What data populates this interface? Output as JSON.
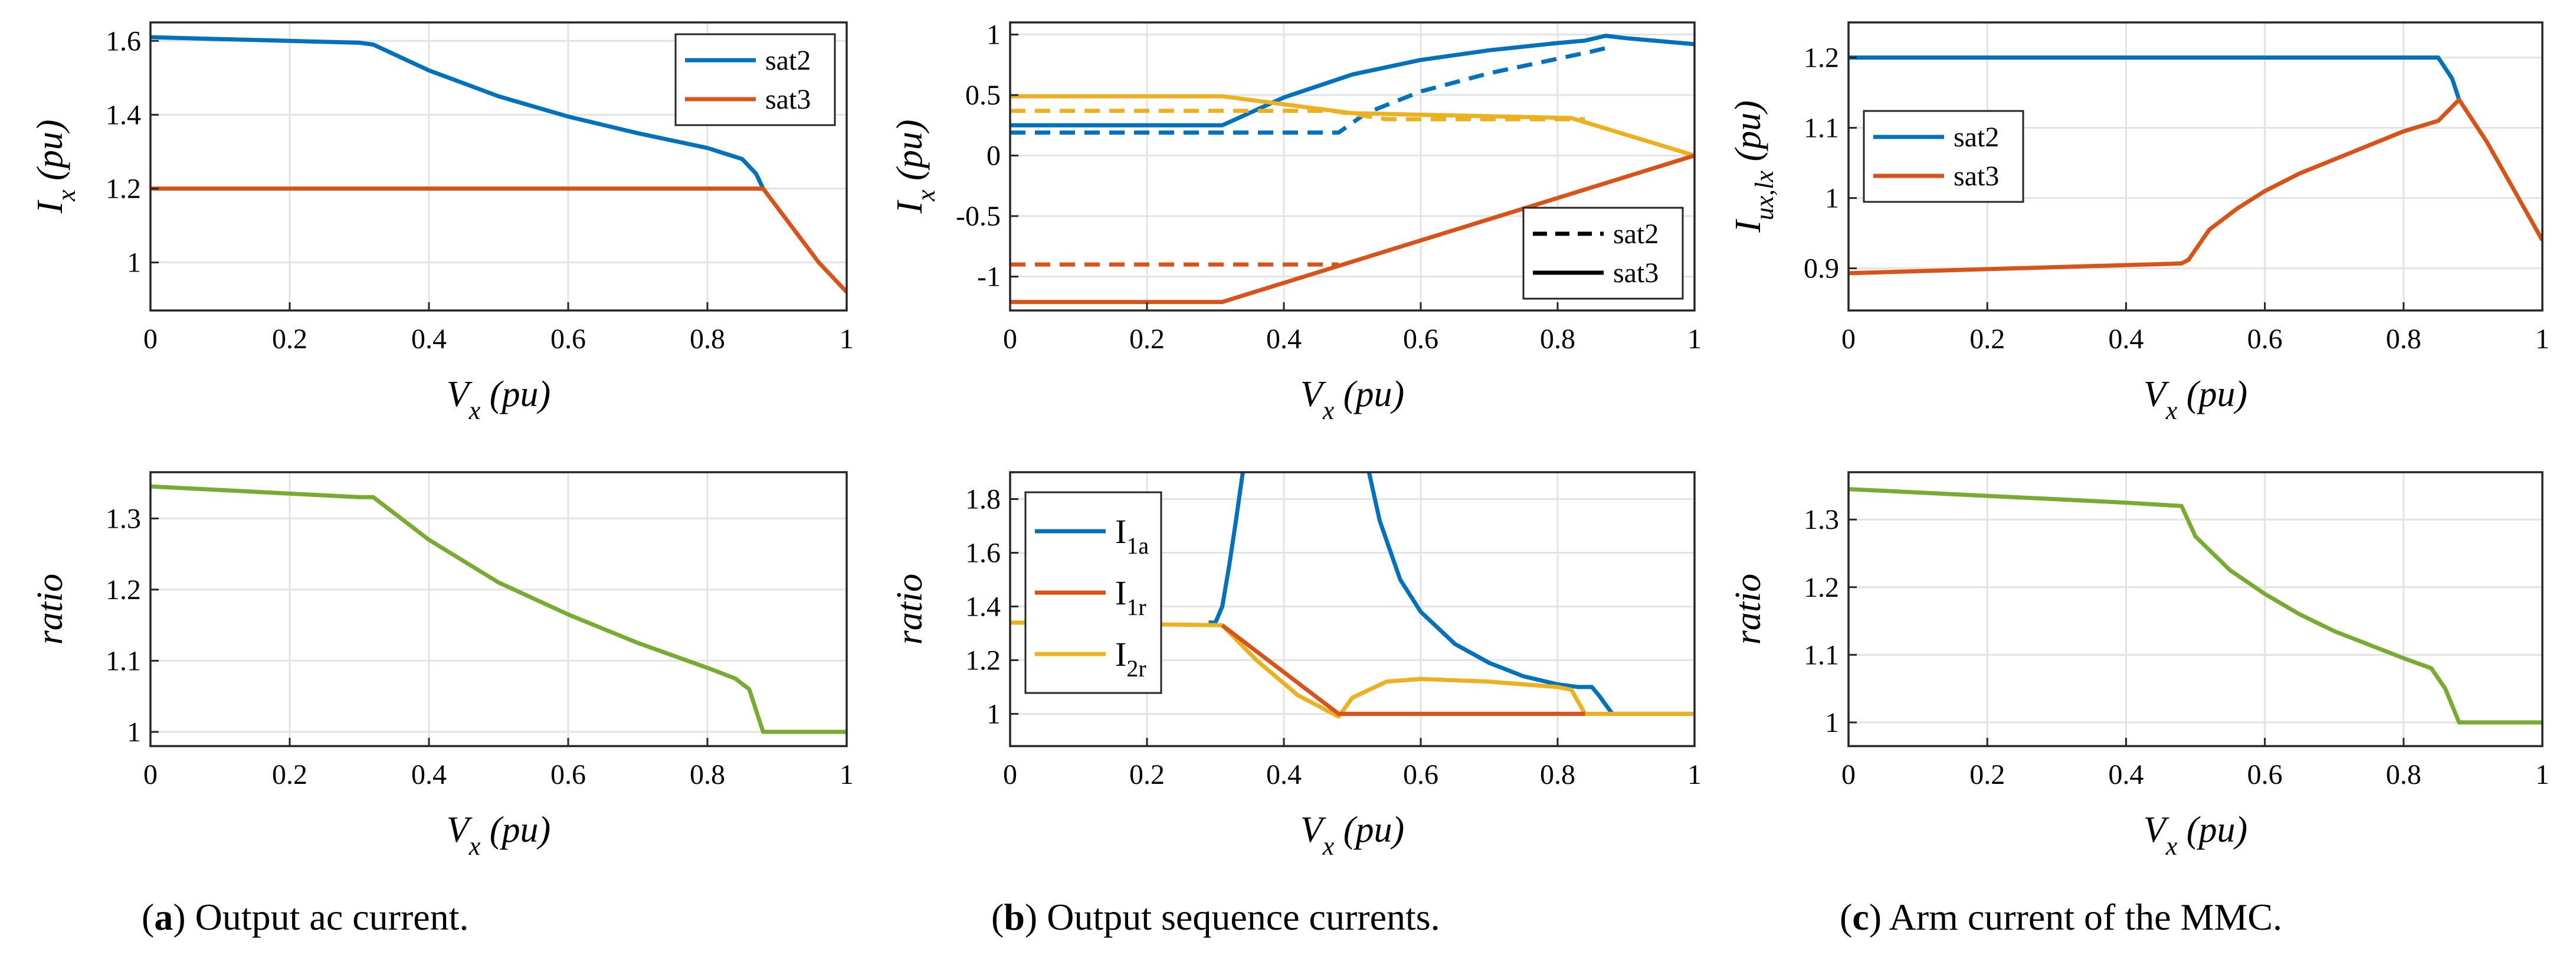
{
  "colors": {
    "blue": "#0072BD",
    "orange": "#D95319",
    "yellow": "#EDB120",
    "green": "#77AC30",
    "black": "#000000"
  },
  "chart_data": [
    {
      "id": "a-top",
      "type": "line",
      "title": "",
      "xlabel": "V",
      "xlabel_sub": "x",
      "xlabel_unit": " (pu)",
      "ylabel": "I",
      "ylabel_sub": "x",
      "ylabel_unit": " (pu)",
      "xlim": [
        0,
        1
      ],
      "ylim": [
        0.87,
        1.65
      ],
      "xticks": [
        0,
        0.2,
        0.4,
        0.6,
        0.8,
        1
      ],
      "xticklabels": [
        "0",
        "0.2",
        "0.4",
        "0.6",
        "0.8",
        "1"
      ],
      "yticks": [
        1,
        1.2,
        1.4,
        1.6
      ],
      "yticklabels": [
        "1",
        "1.2",
        "1.4",
        "1.6"
      ],
      "legend": {
        "placement": "top-right",
        "entries": [
          {
            "label": "sat2",
            "color": "#0072BD",
            "dash": false
          },
          {
            "label": "sat3",
            "color": "#D95319",
            "dash": false
          }
        ]
      },
      "series": [
        {
          "name": "sat2",
          "color": "#0072BD",
          "dash": false,
          "x": [
            0,
            0.1,
            0.2,
            0.3,
            0.32,
            0.4,
            0.5,
            0.6,
            0.7,
            0.8,
            0.85,
            0.87,
            0.88
          ],
          "y": [
            1.61,
            1.605,
            1.6,
            1.595,
            1.59,
            1.52,
            1.45,
            1.395,
            1.35,
            1.31,
            1.28,
            1.24,
            1.2
          ]
        },
        {
          "name": "sat3",
          "color": "#D95319",
          "dash": false,
          "x": [
            0,
            0.88,
            0.92,
            0.96,
            1.0
          ],
          "y": [
            1.2,
            1.2,
            1.1,
            1.0,
            0.92
          ]
        }
      ]
    },
    {
      "id": "a-bottom",
      "type": "line",
      "title": "",
      "xlabel": "V",
      "xlabel_sub": "x",
      "xlabel_unit": " (pu)",
      "ylabel": "ratio",
      "ylabel_sub": "",
      "ylabel_unit": "",
      "xlim": [
        0,
        1
      ],
      "ylim": [
        0.98,
        1.365
      ],
      "xticks": [
        0,
        0.2,
        0.4,
        0.6,
        0.8,
        1
      ],
      "xticklabels": [
        "0",
        "0.2",
        "0.4",
        "0.6",
        "0.8",
        "1"
      ],
      "yticks": [
        1,
        1.1,
        1.2,
        1.3
      ],
      "yticklabels": [
        "1",
        "1.1",
        "1.2",
        "1.3"
      ],
      "legend": null,
      "series": [
        {
          "name": "ratio",
          "color": "#77AC30",
          "dash": false,
          "x": [
            0,
            0.1,
            0.2,
            0.3,
            0.32,
            0.4,
            0.5,
            0.6,
            0.7,
            0.8,
            0.84,
            0.86,
            0.88,
            1.0
          ],
          "y": [
            1.345,
            1.34,
            1.335,
            1.33,
            1.33,
            1.27,
            1.21,
            1.165,
            1.125,
            1.09,
            1.075,
            1.06,
            1.0,
            1.0
          ]
        }
      ]
    },
    {
      "id": "b-top",
      "type": "line",
      "title": "",
      "xlabel": "V",
      "xlabel_sub": "x",
      "xlabel_unit": " (pu)",
      "ylabel": "I",
      "ylabel_sub": "x",
      "ylabel_unit": " (pu)",
      "xlim": [
        0,
        1
      ],
      "ylim": [
        -1.28,
        1.1
      ],
      "xticks": [
        0,
        0.2,
        0.4,
        0.6,
        0.8,
        1
      ],
      "xticklabels": [
        "0",
        "0.2",
        "0.4",
        "0.6",
        "0.8",
        "1"
      ],
      "yticks": [
        -1,
        -0.5,
        0,
        0.5,
        1
      ],
      "yticklabels": [
        "-1",
        "-0.5",
        "0",
        "0.5",
        "1"
      ],
      "legend": {
        "placement": "bottom-right",
        "entries": [
          {
            "label": "sat2",
            "color": "#000000",
            "dash": true
          },
          {
            "label": "sat3",
            "color": "#000000",
            "dash": false
          }
        ]
      },
      "series": [
        {
          "name": "blue sat3",
          "color": "#0072BD",
          "dash": false,
          "x": [
            0,
            0.31,
            0.4,
            0.5,
            0.6,
            0.7,
            0.8,
            0.84,
            0.87,
            0.9,
            1.0
          ],
          "y": [
            0.25,
            0.25,
            0.48,
            0.67,
            0.79,
            0.87,
            0.93,
            0.95,
            0.99,
            0.97,
            0.92
          ]
        },
        {
          "name": "blue sat2",
          "color": "#0072BD",
          "dash": true,
          "x": [
            0,
            0.48,
            0.52,
            0.6,
            0.7,
            0.8,
            0.85,
            0.88
          ],
          "y": [
            0.19,
            0.19,
            0.35,
            0.53,
            0.68,
            0.8,
            0.86,
            0.9
          ]
        },
        {
          "name": "yellow sat3",
          "color": "#EDB120",
          "dash": false,
          "x": [
            0,
            0.31,
            0.5,
            0.82,
            1.0
          ],
          "y": [
            0.49,
            0.49,
            0.35,
            0.31,
            0.0
          ]
        },
        {
          "name": "yellow sat2",
          "color": "#EDB120",
          "dash": true,
          "x": [
            0,
            0.47,
            0.55,
            0.84
          ],
          "y": [
            0.37,
            0.37,
            0.3,
            0.3
          ]
        },
        {
          "name": "orange sat2 dashed",
          "color": "#D95319",
          "dash": true,
          "x": [
            0,
            0.47
          ],
          "y": [
            -0.9,
            -0.9
          ]
        },
        {
          "name": "orange sat3",
          "color": "#D95319",
          "dash": false,
          "x": [
            0,
            0.31,
            1.0
          ],
          "y": [
            -1.21,
            -1.21,
            0.0
          ]
        },
        {
          "name": "orange sat2 tail",
          "color": "#D95319",
          "dash": true,
          "x": [
            0.47,
            0.48
          ],
          "y": [
            -0.9,
            -0.9
          ]
        }
      ]
    },
    {
      "id": "b-bottom",
      "type": "line",
      "title": "",
      "xlabel": "V",
      "xlabel_sub": "x",
      "xlabel_unit": " (pu)",
      "ylabel": "ratio",
      "ylabel_sub": "",
      "ylabel_unit": "",
      "xlim": [
        0,
        1
      ],
      "ylim": [
        0.88,
        1.9
      ],
      "xticks": [
        0,
        0.2,
        0.4,
        0.6,
        0.8,
        1
      ],
      "xticklabels": [
        "0",
        "0.2",
        "0.4",
        "0.6",
        "0.8",
        "1"
      ],
      "yticks": [
        1,
        1.2,
        1.4,
        1.6,
        1.8
      ],
      "yticklabels": [
        "1",
        "1.2",
        "1.4",
        "1.6",
        "1.8"
      ],
      "legend": {
        "placement": "top-left",
        "entries": [
          {
            "label": "I",
            "sub": "1a",
            "color": "#0072BD",
            "dash": false
          },
          {
            "label": "I",
            "sub": "1r",
            "color": "#D95319",
            "dash": false
          },
          {
            "label": "I",
            "sub": "2r",
            "color": "#EDB120",
            "dash": false
          }
        ]
      },
      "series": [
        {
          "name": "I1a left",
          "color": "#0072BD",
          "dash": false,
          "x": [
            0.29,
            0.3,
            0.31,
            0.32,
            0.33,
            0.34,
            0.35
          ],
          "y": [
            1.34,
            1.34,
            1.4,
            1.55,
            1.72,
            1.9,
            1.95
          ]
        },
        {
          "name": "I1a right",
          "color": "#0072BD",
          "dash": false,
          "x": [
            0.52,
            0.54,
            0.57,
            0.6,
            0.65,
            0.7,
            0.75,
            0.8,
            0.83,
            0.85,
            0.86,
            0.88,
            1.0
          ],
          "y": [
            1.95,
            1.72,
            1.5,
            1.38,
            1.26,
            1.19,
            1.14,
            1.11,
            1.1,
            1.1,
            1.07,
            1.0,
            1.0
          ]
        },
        {
          "name": "I2r",
          "color": "#EDB120",
          "dash": false,
          "x": [
            0,
            0.31,
            0.36,
            0.42,
            0.48,
            0.5,
            0.55,
            0.6,
            0.7,
            0.8,
            0.82,
            0.84,
            1.0
          ],
          "y": [
            1.34,
            1.33,
            1.2,
            1.07,
            0.99,
            1.06,
            1.12,
            1.13,
            1.12,
            1.1,
            1.09,
            1.0,
            1.0
          ]
        },
        {
          "name": "I1r",
          "color": "#D95319",
          "dash": false,
          "x": [
            0.31,
            0.48,
            0.84
          ],
          "y": [
            1.33,
            1.0,
            1.0
          ]
        }
      ]
    },
    {
      "id": "c-top",
      "type": "line",
      "title": "",
      "xlabel": "V",
      "xlabel_sub": "x",
      "xlabel_unit": " (pu)",
      "ylabel": "I",
      "ylabel_sub": "ux,lx",
      "ylabel_unit": " (pu)",
      "xlim": [
        0,
        1
      ],
      "ylim": [
        0.84,
        1.25
      ],
      "xticks": [
        0,
        0.2,
        0.4,
        0.6,
        0.8,
        1
      ],
      "xticklabels": [
        "0",
        "0.2",
        "0.4",
        "0.6",
        "0.8",
        "1"
      ],
      "yticks": [
        0.9,
        1,
        1.1,
        1.2
      ],
      "yticklabels": [
        "0.9",
        "1",
        "1.1",
        "1.2"
      ],
      "legend": {
        "placement": "top-left",
        "entries": [
          {
            "label": "sat2",
            "color": "#0072BD",
            "dash": false
          },
          {
            "label": "sat3",
            "color": "#D95319",
            "dash": false
          }
        ]
      },
      "series": [
        {
          "name": "sat2",
          "color": "#0072BD",
          "dash": false,
          "x": [
            0,
            0.85,
            0.87,
            0.88
          ],
          "y": [
            1.2,
            1.2,
            1.17,
            1.14
          ]
        },
        {
          "name": "sat3",
          "color": "#D95319",
          "dash": false,
          "x": [
            0,
            0.48,
            0.49,
            0.52,
            0.56,
            0.6,
            0.65,
            0.7,
            0.75,
            0.8,
            0.85,
            0.88,
            0.92,
            0.96,
            1.0
          ],
          "y": [
            0.893,
            0.907,
            0.912,
            0.955,
            0.985,
            1.01,
            1.035,
            1.055,
            1.075,
            1.095,
            1.11,
            1.14,
            1.08,
            1.01,
            0.94
          ]
        }
      ]
    },
    {
      "id": "c-bottom",
      "type": "line",
      "title": "",
      "xlabel": "V",
      "xlabel_sub": "x",
      "xlabel_unit": " (pu)",
      "ylabel": "ratio",
      "ylabel_sub": "",
      "ylabel_unit": "",
      "xlim": [
        0,
        1
      ],
      "ylim": [
        0.965,
        1.37
      ],
      "xticks": [
        0,
        0.2,
        0.4,
        0.6,
        0.8,
        1
      ],
      "xticklabels": [
        "0",
        "0.2",
        "0.4",
        "0.6",
        "0.8",
        "1"
      ],
      "yticks": [
        1,
        1.1,
        1.2,
        1.3
      ],
      "yticklabels": [
        "1",
        "1.1",
        "1.2",
        "1.3"
      ],
      "legend": null,
      "series": [
        {
          "name": "ratio",
          "color": "#77AC30",
          "dash": false,
          "x": [
            0,
            0.1,
            0.2,
            0.3,
            0.4,
            0.48,
            0.5,
            0.55,
            0.6,
            0.65,
            0.7,
            0.8,
            0.84,
            0.86,
            0.88,
            1.0
          ],
          "y": [
            1.345,
            1.34,
            1.335,
            1.33,
            1.325,
            1.32,
            1.275,
            1.225,
            1.19,
            1.16,
            1.135,
            1.095,
            1.08,
            1.05,
            1.0,
            1.0
          ]
        }
      ]
    }
  ],
  "captions": [
    {
      "letter": "a",
      "text": " Output ac current."
    },
    {
      "letter": "b",
      "text": " Output sequence currents."
    },
    {
      "letter": "c",
      "text": " Arm current of the MMC."
    }
  ]
}
